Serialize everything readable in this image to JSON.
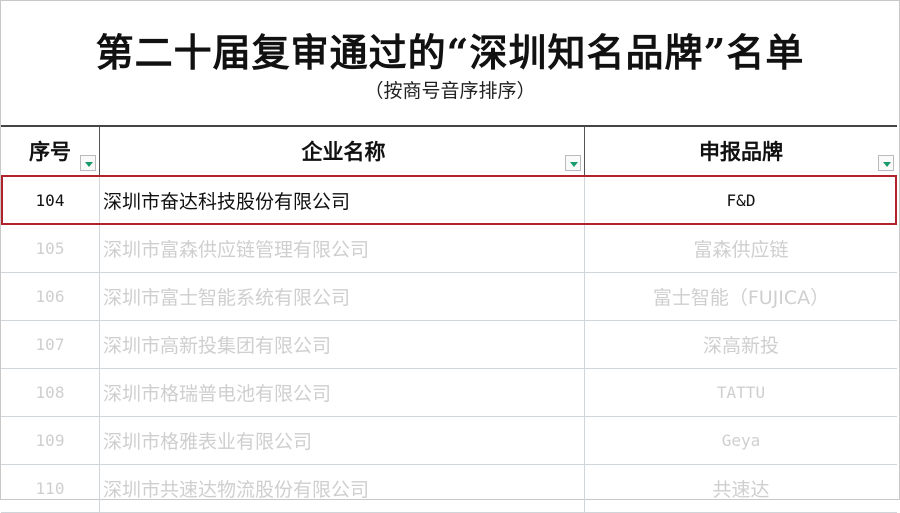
{
  "title": "第二十届复审通过的“深圳知名品牌”名单",
  "subtitle": "（按商号音序排序）",
  "columns": [
    "序号",
    "企业名称",
    "申报品牌"
  ],
  "rows": [
    {
      "no": "104",
      "company": "深圳市奋达科技股份有限公司",
      "brand": "F&D",
      "highlighted": true
    },
    {
      "no": "105",
      "company": "深圳市富森供应链管理有限公司",
      "brand": "富森供应链"
    },
    {
      "no": "106",
      "company": "深圳市富士智能系统有限公司",
      "brand": "富士智能（FUJICA）"
    },
    {
      "no": "107",
      "company": "深圳市高新投集团有限公司",
      "brand": "深高新投"
    },
    {
      "no": "108",
      "company": "深圳市格瑞普电池有限公司",
      "brand": "TATTU"
    },
    {
      "no": "109",
      "company": "深圳市格雅表业有限公司",
      "brand": "Geya"
    },
    {
      "no": "110",
      "company": "深圳市共速达物流股份有限公司",
      "brand": "共速达"
    }
  ],
  "colors": {
    "highlight_border": "#b0232a",
    "filter_arrow": "#1a9a6a",
    "faded_text": "#cfcfcf"
  }
}
